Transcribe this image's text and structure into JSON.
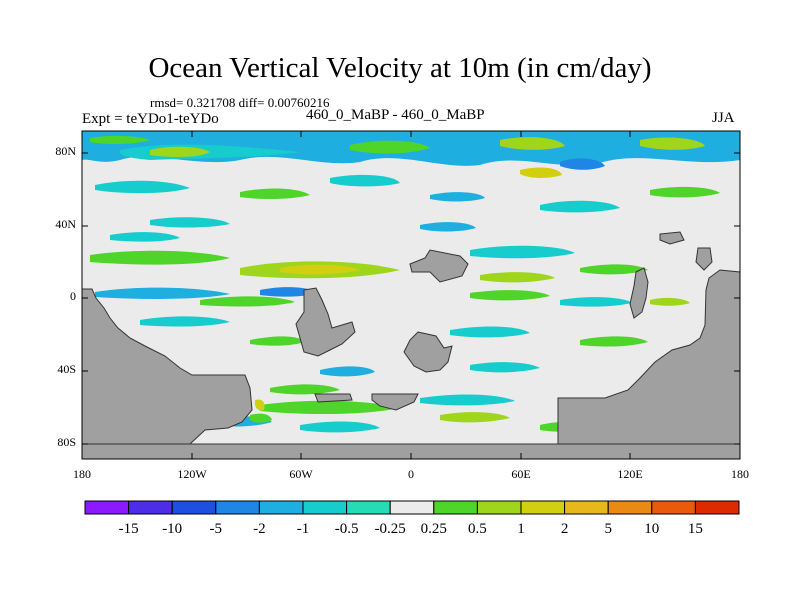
{
  "title": "Ocean Vertical Velocity at 10m (in cm/day)",
  "stats": "rmsd= 0.321708  diff= 0.00760216",
  "experiment": "Expt = teYDo1-teYDo",
  "case": "460_0_MaBP - 460_0_MaBP",
  "season": "JJA",
  "lat_ticks": [
    "80N",
    "40N",
    "0",
    "40S",
    "80S"
  ],
  "lon_ticks": [
    "180",
    "120W",
    "60W",
    "0",
    "60E",
    "120E",
    "180"
  ],
  "colorbar": {
    "labels": [
      "-15",
      "-10",
      "-5",
      "-2",
      "-1",
      "-0.5",
      "-0.25",
      "0.25",
      "0.5",
      "1",
      "2",
      "5",
      "10",
      "15"
    ],
    "colors": [
      "#8c1aff",
      "#4d2de6",
      "#1f4fe0",
      "#1f86e6",
      "#1eafe0",
      "#17cccc",
      "#27dcb4",
      "#ebebeb",
      "#4fd42a",
      "#9fd61c",
      "#d2ce10",
      "#e6b81c",
      "#e88a14",
      "#e85a0e",
      "#dd2a00"
    ]
  },
  "colors": {
    "land": "#a0a0a0",
    "ocean_background": "#ebebeb"
  }
}
